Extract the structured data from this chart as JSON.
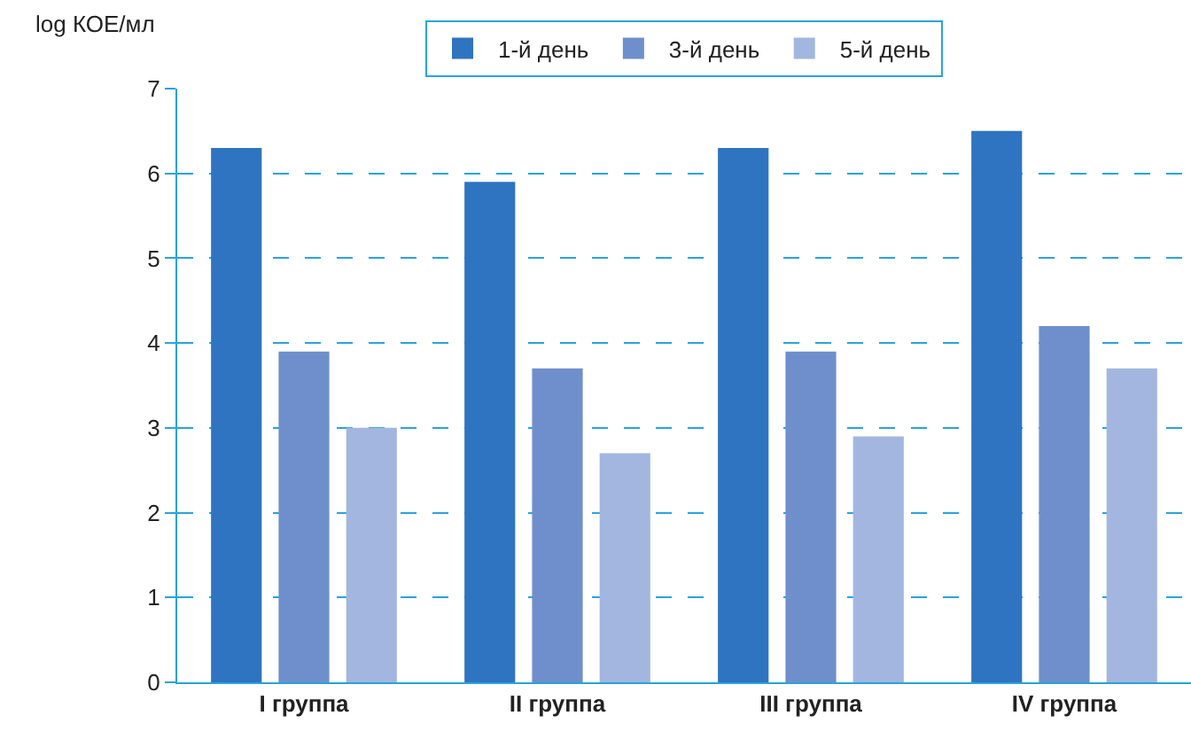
{
  "chart_data": {
    "type": "bar",
    "ylabel": "log КОЕ/мл",
    "categories": [
      "I группа",
      "II группа",
      "III группа",
      "IV группа"
    ],
    "series": [
      {
        "name": "1-й день",
        "color": "#2f74c0",
        "values": [
          6.3,
          5.9,
          6.3,
          6.5
        ]
      },
      {
        "name": "3-й день",
        "color": "#6e8fcb",
        "values": [
          3.9,
          3.7,
          3.9,
          4.2
        ]
      },
      {
        "name": "5-й день",
        "color": "#a3b6df",
        "values": [
          3.0,
          2.7,
          2.9,
          3.7
        ]
      }
    ],
    "ylim": [
      0,
      7
    ],
    "yticks": [
      0,
      1,
      2,
      3,
      4,
      5,
      6,
      7
    ],
    "grid": "y",
    "legend": "top",
    "line_style": "dashed"
  }
}
